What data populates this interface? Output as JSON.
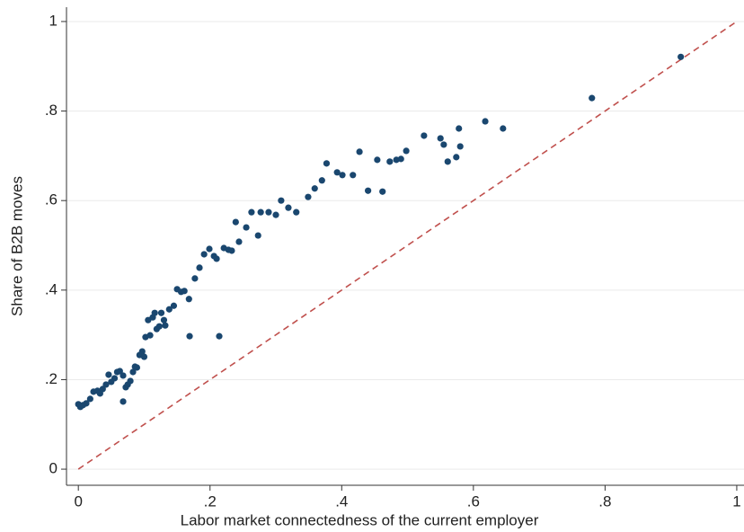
{
  "chart_data": {
    "type": "scatter",
    "x_label": "Labor market connectedness of the current employer",
    "y_label": "Share of B2B moves",
    "color": "#1a476f",
    "x": [
      0,
      0.003,
      0.007,
      0.012,
      0.018,
      0.023,
      0.029,
      0.033,
      0.037,
      0.042,
      0.046,
      0.05,
      0.055,
      0.059,
      0.063,
      0.068,
      0.068,
      0.072,
      0.075,
      0.079,
      0.083,
      0.086,
      0.089,
      0.093,
      0.097,
      0.1,
      0.102,
      0.106,
      0.109,
      0.113,
      0.116,
      0.119,
      0.123,
      0.126,
      0.13,
      0.132,
      0.138,
      0.145,
      0.15,
      0.156,
      0.161,
      0.168,
      0.169,
      0.177,
      0.184,
      0.191,
      0.199,
      0.206,
      0.21,
      0.214,
      0.221,
      0.228,
      0.233,
      0.239,
      0.244,
      0.255,
      0.263,
      0.273,
      0.277,
      0.289,
      0.3,
      0.308,
      0.319,
      0.331,
      0.349,
      0.359,
      0.37,
      0.377,
      0.393,
      0.401,
      0.417,
      0.427,
      0.44,
      0.454,
      0.462,
      0.473,
      0.483,
      0.49,
      0.498,
      0.525,
      0.55,
      0.555,
      0.561,
      0.574,
      0.578,
      0.58,
      0.618,
      0.645,
      0.78,
      0.915
    ],
    "values": [
      0.145,
      0.139,
      0.143,
      0.147,
      0.157,
      0.173,
      0.175,
      0.169,
      0.179,
      0.189,
      0.211,
      0.195,
      0.203,
      0.217,
      0.219,
      0.209,
      0.151,
      0.183,
      0.189,
      0.197,
      0.217,
      0.229,
      0.227,
      0.255,
      0.263,
      0.251,
      0.295,
      0.333,
      0.299,
      0.339,
      0.349,
      0.313,
      0.319,
      0.349,
      0.333,
      0.321,
      0.357,
      0.365,
      0.402,
      0.396,
      0.398,
      0.38,
      0.297,
      0.426,
      0.45,
      0.48,
      0.492,
      0.476,
      0.47,
      0.297,
      0.494,
      0.49,
      0.488,
      0.552,
      0.508,
      0.54,
      0.574,
      0.522,
      0.574,
      0.574,
      0.568,
      0.6,
      0.584,
      0.574,
      0.608,
      0.627,
      0.645,
      0.683,
      0.663,
      0.657,
      0.657,
      0.709,
      0.622,
      0.691,
      0.62,
      0.687,
      0.691,
      0.693,
      0.711,
      0.745,
      0.739,
      0.725,
      0.687,
      0.697,
      0.761,
      0.721,
      0.777,
      0.761,
      0.829,
      0.921
    ],
    "reference_line": {
      "x": [
        0,
        1
      ],
      "y": [
        0,
        1
      ],
      "color": "#c0504d",
      "style": "dashed"
    },
    "xlim": [
      -0.018,
      1.011
    ],
    "ylim": [
      -0.036,
      1.032
    ],
    "xticks": [
      0,
      {
        "value": 0.2,
        "label": ".2"
      },
      {
        "value": 0.4,
        "label": ".4"
      },
      {
        "value": 0.6,
        "label": ".6"
      },
      {
        "value": 0.8,
        "label": ".8"
      },
      1
    ],
    "yticks": [
      0,
      {
        "value": 0.2,
        "label": ".2"
      },
      {
        "value": 0.4,
        "label": ".4"
      },
      {
        "value": 0.6,
        "label": ".6"
      },
      {
        "value": 0.8,
        "label": ".8"
      },
      1
    ],
    "grid": true
  }
}
